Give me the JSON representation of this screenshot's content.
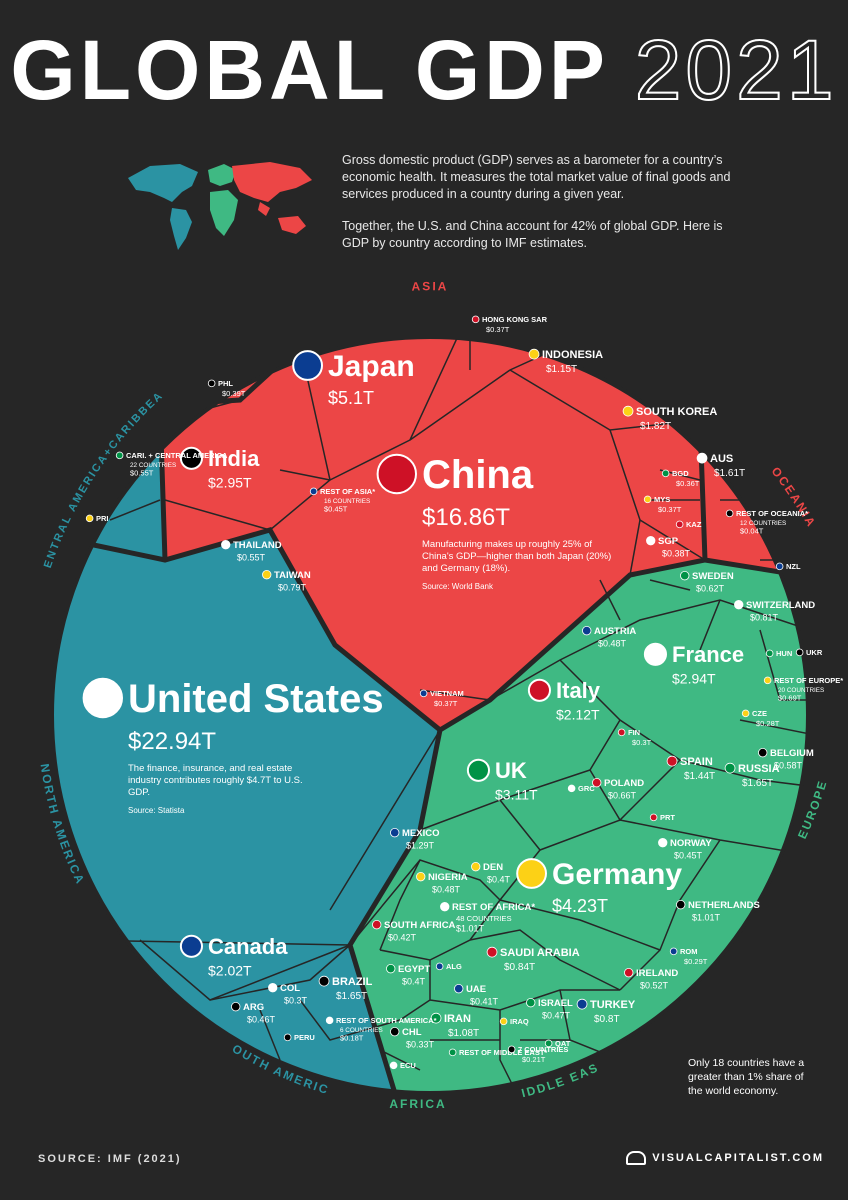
{
  "header": {
    "title_bold": "GLOBAL GDP",
    "title_year": "2021"
  },
  "intro": {
    "p1": "Gross domestic product (GDP) serves as a barometer for a country’s economic health. It measures the total market value of final goods and services produced in a country during a given year.",
    "p2": "Together, the U.S. and China account for 42% of global GDP. Here is GDP by country according to IMF estimates."
  },
  "footer": {
    "source": "SOURCE: IMF (2021)",
    "brand": "VISUALCAPITALIST.COM",
    "note": "Only 18 countries have a greater than 1% share of the world economy."
  },
  "colors": {
    "asia": "#ec4646",
    "americas": "#2b93a3",
    "europe": "#3fb983",
    "africa_me": "#3fb983",
    "border": "#262626"
  },
  "chart_data": {
    "type": "voronoi-treemap",
    "unit": "USD trillions",
    "regions": [
      {
        "name": "ASIA",
        "color": "#ec4646"
      },
      {
        "name": "OCEANIA",
        "color": "#ec4646"
      },
      {
        "name": "EUROPE",
        "color": "#3fb983"
      },
      {
        "name": "MIDDLE EAST",
        "color": "#3fb983"
      },
      {
        "name": "AFRICA",
        "color": "#3fb983"
      },
      {
        "name": "SOUTH AMERICA",
        "color": "#2b93a3"
      },
      {
        "name": "NORTH AMERICA",
        "color": "#2b93a3"
      },
      {
        "name": "CENTRAL AMERICA+CARIBBEAN",
        "color": "#2b93a3"
      }
    ],
    "items": [
      {
        "id": "usa",
        "label": "United States",
        "value": "$22.94T",
        "size": "xl",
        "note": "The finance, insurance, and real estate industry contributes roughly $4.7T to U.S. GDP.",
        "source": "Source: Statista"
      },
      {
        "id": "china",
        "label": "China",
        "value": "$16.86T",
        "size": "xl",
        "note": "Manufacturing makes up roughly 25% of China's GDP—higher than both Japan (20%) and Germany (18%).",
        "source": "Source: World Bank"
      },
      {
        "id": "japan",
        "label": "Japan",
        "value": "$5.1T",
        "size": "l"
      },
      {
        "id": "germany",
        "label": "Germany",
        "value": "$4.23T",
        "size": "l"
      },
      {
        "id": "uk",
        "label": "UK",
        "value": "$3.11T",
        "size": "m"
      },
      {
        "id": "india",
        "label": "India",
        "value": "$2.95T",
        "size": "m"
      },
      {
        "id": "france",
        "label": "France",
        "value": "$2.94T",
        "size": "m"
      },
      {
        "id": "italy",
        "label": "Italy",
        "value": "$2.12T",
        "size": "m"
      },
      {
        "id": "canada",
        "label": "Canada",
        "value": "$2.02T",
        "size": "m"
      },
      {
        "id": "korea",
        "label": "SOUTH KOREA",
        "value": "$1.82T",
        "size": "s"
      },
      {
        "id": "russia",
        "label": "RUSSIA",
        "value": "$1.65T",
        "size": "s"
      },
      {
        "id": "brazil",
        "label": "BRAZIL",
        "value": "$1.65T",
        "size": "s"
      },
      {
        "id": "aus",
        "label": "AUS",
        "value": "$1.61T",
        "size": "s"
      },
      {
        "id": "spain",
        "label": "SPAIN",
        "value": "$1.44T",
        "size": "s"
      },
      {
        "id": "mexico",
        "label": "MEXICO",
        "value": "$1.29T",
        "size": "xs"
      },
      {
        "id": "indonesia",
        "label": "INDONESIA",
        "value": "$1.15T",
        "size": "s"
      },
      {
        "id": "iran",
        "label": "IRAN",
        "value": "$1.08T",
        "size": "s"
      },
      {
        "id": "netherlands",
        "label": "NETHERLANDS",
        "value": "$1.01T",
        "size": "xs"
      },
      {
        "id": "restafrica",
        "label": "REST OF AFRICA*",
        "sub": "48 COUNTRIES",
        "value": "$1.01T",
        "size": "xs"
      },
      {
        "id": "saudi",
        "label": "SAUDI ARABIA",
        "value": "$0.84T",
        "size": "s"
      },
      {
        "id": "turkey",
        "label": "TURKEY",
        "value": "$0.8T",
        "size": "s"
      },
      {
        "id": "taiwan",
        "label": "TAIWAN",
        "value": "$0.79T",
        "size": "xs"
      },
      {
        "id": "restmideast",
        "label": "REST OF MIDDLE EAST*",
        "value": "",
        "size": "xxs"
      },
      {
        "id": "restmideast7",
        "label": "7 COUNTRIES",
        "value": "$0.21T",
        "size": "xxs"
      },
      {
        "id": "restsouthamerica",
        "label": "REST OF SOUTH AMERICA*",
        "sub": "6 COUNTRIES",
        "value": "$0.18T",
        "size": "xxs"
      },
      {
        "id": "poland",
        "label": "POLAND",
        "value": "$0.66T",
        "size": "xs"
      },
      {
        "id": "restasia",
        "label": "REST OF ASIA*",
        "sub": "16 COUNTRIES",
        "value": "$0.45T",
        "size": "xxs"
      },
      {
        "id": "resteurope",
        "label": "REST OF EUROPE*",
        "sub": "20 COUNTRIES",
        "value": "$0.69T",
        "size": "xxs"
      },
      {
        "id": "sweden",
        "label": "SWEDEN",
        "value": "$0.62T",
        "size": "xs"
      },
      {
        "id": "belgium",
        "label": "BELGIUM",
        "value": "$0.58T",
        "size": "xs"
      },
      {
        "id": "thailand",
        "label": "THAILAND",
        "value": "$0.55T",
        "size": "xs"
      },
      {
        "id": "ireland",
        "label": "IRELAND",
        "value": "$0.52T",
        "size": "xs"
      },
      {
        "id": "austria",
        "label": "AUSTRIA",
        "value": "$0.48T",
        "size": "xs"
      },
      {
        "id": "nigeria",
        "label": "NIGERIA",
        "value": "$0.48T",
        "size": "xs"
      },
      {
        "id": "israel",
        "label": "ISRAEL",
        "value": "$0.47T",
        "size": "xs"
      },
      {
        "id": "arg",
        "label": "ARG",
        "value": "$0.46T",
        "size": "xs"
      },
      {
        "id": "norway",
        "label": "NORWAY",
        "value": "$0.45T",
        "size": "xs"
      },
      {
        "id": "southafrica",
        "label": "SOUTH AFRICA",
        "value": "$0.42T",
        "size": "xs"
      },
      {
        "id": "uae",
        "label": "UAE",
        "value": "$0.41T",
        "size": "xs"
      },
      {
        "id": "den",
        "label": "DEN",
        "value": "$0.4T",
        "size": "xs"
      },
      {
        "id": "egypt",
        "label": "EGYPT",
        "value": "$0.4T",
        "size": "xs"
      },
      {
        "id": "phl",
        "label": "PHL",
        "value": "$0.39T",
        "size": "xxs"
      },
      {
        "id": "sgp",
        "label": "SGP",
        "value": "$0.38T",
        "size": "xs"
      },
      {
        "id": "hongkong",
        "label": "HONG KONG SAR",
        "value": "$0.37T",
        "size": "xxs"
      },
      {
        "id": "vietnam",
        "label": "VIETNAM",
        "value": "$0.37T",
        "size": "xxs"
      },
      {
        "id": "mys",
        "label": "MYS",
        "value": "$0.37T",
        "size": "xxs"
      },
      {
        "id": "bgd",
        "label": "BGD",
        "value": "$0.36T",
        "size": "xxs"
      },
      {
        "id": "chl",
        "label": "CHL",
        "value": "$0.33T",
        "size": "xs"
      },
      {
        "id": "col",
        "label": "COL",
        "value": "$0.3T",
        "size": "xs"
      },
      {
        "id": "fin",
        "label": "FIN",
        "value": "$0.3T",
        "size": "xxs"
      },
      {
        "id": "rom",
        "label": "ROM",
        "value": "$0.29T",
        "size": "xxs"
      },
      {
        "id": "cze",
        "label": "CZE",
        "value": "$0.28T",
        "size": "xxs"
      },
      {
        "id": "carib",
        "label": "CARI. + CENTRAL AMERICA",
        "sub": "22 COUNTRIES",
        "value": "$0.55T",
        "size": "xxs"
      },
      {
        "id": "restoceania",
        "label": "REST OF OCEANIA*",
        "sub": "12 COUNTRIES",
        "value": "$0.04T",
        "size": "xxs"
      },
      {
        "id": "switzerland",
        "label": "SWITZERLAND",
        "value": "$0.81T",
        "size": "xs"
      },
      {
        "id": "kaz",
        "label": "KAZ",
        "value": "",
        "size": "xxs"
      },
      {
        "id": "nzl",
        "label": "NZL",
        "value": "",
        "size": "xxs"
      },
      {
        "id": "pri",
        "label": "PRI",
        "value": "",
        "size": "xxs"
      },
      {
        "id": "hun",
        "label": "HUN",
        "value": "",
        "size": "xxs"
      },
      {
        "id": "ukr",
        "label": "UKR",
        "value": "",
        "size": "xxs"
      },
      {
        "id": "grc",
        "label": "GRC",
        "value": "",
        "size": "xxs"
      },
      {
        "id": "prt",
        "label": "PRT",
        "value": "",
        "size": "xxs"
      },
      {
        "id": "alg",
        "label": "ALG",
        "value": "",
        "size": "xxs"
      },
      {
        "id": "iraq",
        "label": "IRAQ",
        "value": "",
        "size": "xxs"
      },
      {
        "id": "qat",
        "label": "QAT",
        "value": "",
        "size": "xxs"
      },
      {
        "id": "peru",
        "label": "PERU",
        "value": "",
        "size": "xxs"
      },
      {
        "id": "ecu",
        "label": "ECU",
        "value": "",
        "size": "xxs"
      }
    ]
  }
}
